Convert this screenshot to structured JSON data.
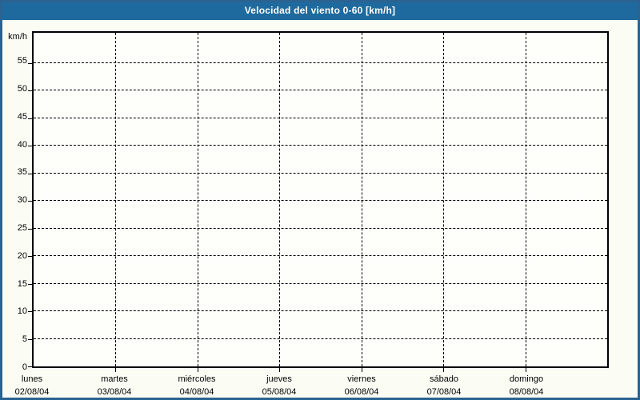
{
  "window": {
    "title": "Velocidad del viento 0-60 [km/h]"
  },
  "colors": {
    "titlebar_bg": "#1e6a9e",
    "titlebar_text": "#ffffff",
    "frame_border": "#2a6391",
    "canvas_bg": "#fbfdf5",
    "plot_bg": "#fefefb",
    "axis_and_grid": "#000000",
    "label_text": "#000000"
  },
  "chart_data": {
    "type": "line",
    "title": "Velocidad del viento 0-60 [km/h]",
    "xlabel": "",
    "ylabel": "km/h",
    "ylim": [
      0,
      60.5
    ],
    "yticks": [
      0,
      5,
      10,
      15,
      20,
      25,
      30,
      35,
      40,
      45,
      50,
      55
    ],
    "grid": "black dashed horizontal lines at each ytick >= 5 and vertical lines at interior day boundaries",
    "legend": "none",
    "x_divisions": 7,
    "x_categories": [
      {
        "day": "lunes",
        "date": "02/08/04"
      },
      {
        "day": "martes",
        "date": "03/08/04"
      },
      {
        "day": "miércoles",
        "date": "04/08/04"
      },
      {
        "day": "jueves",
        "date": "05/08/04"
      },
      {
        "day": "viernes",
        "date": "06/08/04"
      },
      {
        "day": "sábado",
        "date": "07/08/04"
      },
      {
        "day": "domingo",
        "date": "08/08/04"
      }
    ],
    "series": [],
    "note": "empty plot - no wind speed data points are drawn"
  }
}
